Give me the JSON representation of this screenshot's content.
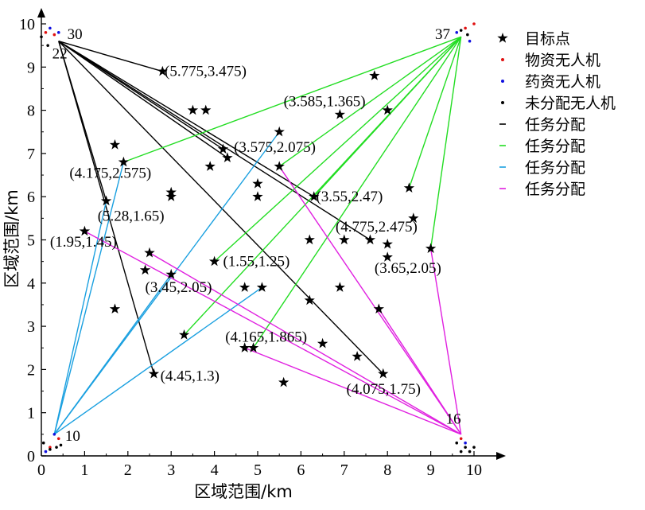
{
  "chart_data": {
    "type": "scatter",
    "xlabel": "区域范围/km",
    "ylabel": "区域范围/km",
    "xlim": [
      0,
      10
    ],
    "ylim": [
      0,
      10
    ],
    "xticks": [
      "0",
      "1",
      "2",
      "3",
      "4",
      "5",
      "6",
      "7",
      "8",
      "9",
      "10"
    ],
    "yticks": [
      "0",
      "1",
      "2",
      "3",
      "4",
      "5",
      "6",
      "7",
      "8",
      "9",
      "10"
    ],
    "grid": false,
    "legend_position": "right",
    "legend": [
      {
        "label": "目标点",
        "marker": "star",
        "color": "#000000"
      },
      {
        "label": "物资无人机",
        "marker": "dot",
        "color": "#e01010"
      },
      {
        "label": "药资无人机",
        "marker": "dot",
        "color": "#1010e0"
      },
      {
        "label": "未分配无人机",
        "marker": "dot",
        "color": "#000000"
      },
      {
        "label": "任务分配",
        "marker": "line",
        "color": "#000000"
      },
      {
        "label": "任务分配",
        "marker": "line",
        "color": "#22dd22"
      },
      {
        "label": "任务分配",
        "marker": "line",
        "color": "#1aa0e0"
      },
      {
        "label": "任务分配",
        "marker": "line",
        "color": "#e020e0"
      }
    ],
    "targets": [
      [
        2.8,
        8.9
      ],
      [
        3.5,
        8.0
      ],
      [
        3.8,
        8.0
      ],
      [
        7.7,
        8.8
      ],
      [
        6.9,
        7.9
      ],
      [
        8.0,
        8.0
      ],
      [
        1.7,
        7.2
      ],
      [
        4.2,
        7.1
      ],
      [
        4.3,
        6.9
      ],
      [
        3.9,
        6.7
      ],
      [
        1.9,
        6.8
      ],
      [
        5.5,
        7.5
      ],
      [
        5.5,
        6.7
      ],
      [
        5.0,
        6.3
      ],
      [
        5.0,
        6.0
      ],
      [
        3.0,
        6.1
      ],
      [
        3.0,
        6.0
      ],
      [
        1.5,
        5.9
      ],
      [
        6.3,
        6.0
      ],
      [
        8.5,
        6.2
      ],
      [
        8.6,
        5.5
      ],
      [
        1.0,
        5.2
      ],
      [
        6.2,
        5.0
      ],
      [
        7.0,
        5.0
      ],
      [
        7.6,
        5.0
      ],
      [
        8.0,
        4.9
      ],
      [
        9.0,
        4.8
      ],
      [
        8.0,
        4.6
      ],
      [
        2.5,
        4.7
      ],
      [
        4.0,
        4.5
      ],
      [
        2.4,
        4.3
      ],
      [
        3.0,
        4.2
      ],
      [
        4.7,
        3.9
      ],
      [
        5.1,
        3.9
      ],
      [
        6.9,
        3.9
      ],
      [
        6.2,
        3.6
      ],
      [
        1.7,
        3.4
      ],
      [
        7.8,
        3.4
      ],
      [
        3.3,
        2.8
      ],
      [
        4.7,
        2.5
      ],
      [
        4.9,
        2.5
      ],
      [
        6.5,
        2.6
      ],
      [
        7.3,
        2.3
      ],
      [
        2.6,
        1.9
      ],
      [
        7.9,
        1.9
      ],
      [
        5.6,
        1.7
      ]
    ],
    "hub_labels": [
      {
        "text": "30",
        "x": 0.6,
        "y": 9.65
      },
      {
        "text": "22",
        "x": 0.25,
        "y": 9.2
      },
      {
        "text": "37",
        "x": 9.1,
        "y": 9.65
      },
      {
        "text": "10",
        "x": 0.55,
        "y": 0.35
      },
      {
        "text": "16",
        "x": 9.35,
        "y": 0.75
      }
    ],
    "point_labels": [
      {
        "text": "(5.775,3.475)",
        "x": 2.85,
        "y": 8.9
      },
      {
        "text": "(3.585,1.365)",
        "x": 5.6,
        "y": 8.2
      },
      {
        "text": "(3.575,2.075)",
        "x": 4.45,
        "y": 7.15
      },
      {
        "text": "(4.175,2.575)",
        "x": 0.65,
        "y": 6.55
      },
      {
        "text": "(3.55,2.47)",
        "x": 6.35,
        "y": 6.0
      },
      {
        "text": "(5.28,1.65)",
        "x": 1.3,
        "y": 5.55
      },
      {
        "text": "(4.775,2.475)",
        "x": 6.8,
        "y": 5.3
      },
      {
        "text": "(1.95,1.45)",
        "x": 0.2,
        "y": 4.95
      },
      {
        "text": "(1.55,1.25)",
        "x": 4.2,
        "y": 4.5
      },
      {
        "text": "(3.65,2.05)",
        "x": 7.7,
        "y": 4.35
      },
      {
        "text": "(3.45,2.05)",
        "x": 2.4,
        "y": 3.9
      },
      {
        "text": "(4.165,1.865)",
        "x": 4.25,
        "y": 2.75
      },
      {
        "text": "(4.45,1.3)",
        "x": 2.75,
        "y": 1.85
      },
      {
        "text": "(4.075,1.75)",
        "x": 7.05,
        "y": 1.55
      }
    ],
    "drones": {
      "red": [
        [
          0.1,
          9.8
        ],
        [
          0.3,
          9.75
        ],
        [
          0.2,
          0.2
        ],
        [
          0.4,
          0.4
        ],
        [
          9.8,
          9.9
        ],
        [
          10.0,
          10.0
        ],
        [
          9.7,
          0.4
        ]
      ],
      "blue": [
        [
          0.2,
          9.9
        ],
        [
          0.4,
          9.8
        ],
        [
          0.3,
          0.5
        ],
        [
          0.1,
          0.1
        ],
        [
          9.6,
          9.8
        ],
        [
          9.9,
          9.6
        ],
        [
          9.8,
          0.3
        ]
      ],
      "black": [
        [
          0.0,
          9.7
        ],
        [
          0.15,
          9.5
        ],
        [
          0.05,
          0.3
        ],
        [
          0.2,
          0.15
        ],
        [
          0.35,
          0.2
        ],
        [
          0.45,
          0.25
        ],
        [
          9.7,
          9.85
        ],
        [
          9.85,
          9.75
        ],
        [
          9.6,
          0.3
        ],
        [
          9.8,
          0.2
        ],
        [
          9.9,
          0.1
        ],
        [
          9.7,
          0.1
        ],
        [
          10.0,
          0.2
        ]
      ]
    },
    "series": [
      {
        "name": "任务分配",
        "color": "#000000",
        "segments": [
          [
            [
              0.4,
              9.6
            ],
            [
              2.8,
              8.9
            ]
          ],
          [
            [
              0.4,
              9.6
            ],
            [
              4.2,
              7.1
            ]
          ],
          [
            [
              0.4,
              9.6
            ],
            [
              4.3,
              6.9
            ]
          ],
          [
            [
              0.4,
              9.6
            ],
            [
              6.3,
              6.0
            ]
          ],
          [
            [
              0.4,
              9.6
            ],
            [
              7.6,
              5.0
            ]
          ],
          [
            [
              0.4,
              9.6
            ],
            [
              7.9,
              1.9
            ]
          ],
          [
            [
              0.4,
              9.6
            ],
            [
              2.6,
              1.9
            ]
          ],
          [
            [
              0.4,
              9.6
            ],
            [
              1.5,
              5.9
            ]
          ]
        ]
      },
      {
        "name": "任务分配",
        "color": "#22dd22",
        "segments": [
          [
            [
              9.7,
              9.7
            ],
            [
              1.9,
              6.8
            ]
          ],
          [
            [
              9.7,
              9.7
            ],
            [
              6.3,
              6.0
            ]
          ],
          [
            [
              9.7,
              9.7
            ],
            [
              4.0,
              4.5
            ]
          ],
          [
            [
              9.7,
              9.7
            ],
            [
              3.3,
              2.8
            ]
          ],
          [
            [
              9.7,
              9.7
            ],
            [
              4.9,
              2.5
            ]
          ],
          [
            [
              9.7,
              9.7
            ],
            [
              8.5,
              6.2
            ]
          ],
          [
            [
              9.7,
              9.7
            ],
            [
              9.0,
              4.8
            ]
          ],
          [
            [
              9.7,
              9.7
            ],
            [
              5.5,
              6.7
            ]
          ]
        ]
      },
      {
        "name": "任务分配",
        "color": "#1aa0e0",
        "segments": [
          [
            [
              0.3,
              0.5
            ],
            [
              1.9,
              6.8
            ]
          ],
          [
            [
              0.3,
              0.5
            ],
            [
              5.5,
              7.5
            ]
          ],
          [
            [
              0.3,
              0.5
            ],
            [
              3.0,
              4.2
            ]
          ],
          [
            [
              0.3,
              0.5
            ],
            [
              5.1,
              3.9
            ]
          ],
          [
            [
              0.3,
              0.5
            ],
            [
              1.5,
              5.9
            ]
          ]
        ]
      },
      {
        "name": "任务分配",
        "color": "#e020e0",
        "segments": [
          [
            [
              9.7,
              0.5
            ],
            [
              1.0,
              5.2
            ]
          ],
          [
            [
              9.7,
              0.5
            ],
            [
              2.5,
              4.7
            ]
          ],
          [
            [
              9.7,
              0.5
            ],
            [
              7.8,
              3.4
            ]
          ],
          [
            [
              9.7,
              0.5
            ],
            [
              5.5,
              6.7
            ]
          ],
          [
            [
              9.7,
              0.5
            ],
            [
              9.0,
              4.8
            ]
          ],
          [
            [
              9.7,
              0.5
            ],
            [
              4.7,
              2.5
            ]
          ]
        ]
      }
    ]
  }
}
